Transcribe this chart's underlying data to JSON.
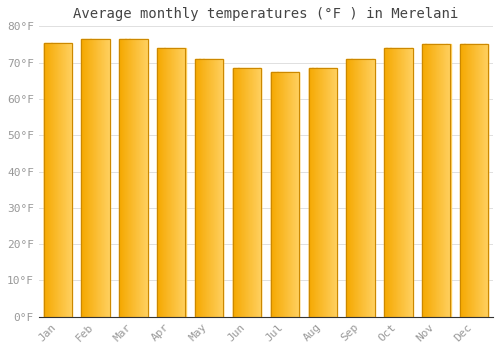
{
  "title": "Average monthly temperatures (°F ) in Merelani",
  "months": [
    "Jan",
    "Feb",
    "Mar",
    "Apr",
    "May",
    "Jun",
    "Jul",
    "Aug",
    "Sep",
    "Oct",
    "Nov",
    "Dec"
  ],
  "values": [
    75.5,
    76.5,
    76.5,
    74.0,
    71.0,
    68.5,
    67.5,
    68.5,
    71.0,
    74.0,
    75.0,
    75.0
  ],
  "bar_color_left": "#F5A800",
  "bar_color_right": "#FFD060",
  "bar_edge_color": "#CC8800",
  "background_color": "#FFFFFF",
  "grid_color": "#E0E0E0",
  "ylim": [
    0,
    80
  ],
  "yticks": [
    0,
    10,
    20,
    30,
    40,
    50,
    60,
    70,
    80
  ],
  "ytick_labels": [
    "0°F",
    "10°F",
    "20°F",
    "30°F",
    "40°F",
    "50°F",
    "60°F",
    "70°F",
    "80°F"
  ],
  "title_fontsize": 10,
  "tick_fontsize": 8,
  "font_color": "#999999",
  "title_font_color": "#444444",
  "bar_width": 0.75
}
